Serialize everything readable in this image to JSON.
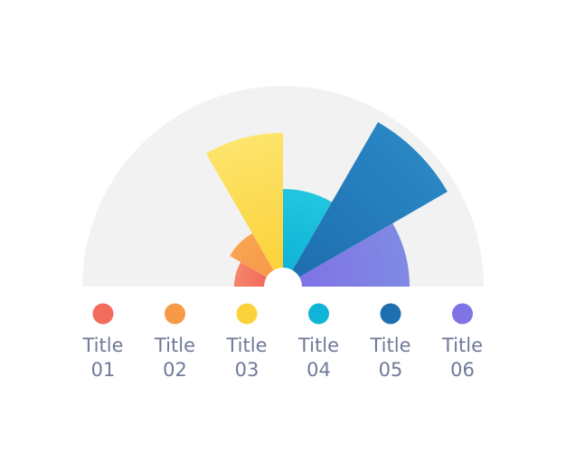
{
  "chart_data": {
    "type": "polar-area-semicircle",
    "title": "",
    "max": 1.0,
    "categories": [
      {
        "name_line1": "Title",
        "name_line2": "01",
        "value": 0.27,
        "color": "#f26b5b",
        "color_light": "#f5866a"
      },
      {
        "name_line1": "Title",
        "name_line2": "02",
        "value": 0.34,
        "color": "#f79a48",
        "color_light": "#f7a452"
      },
      {
        "name_line1": "Title",
        "name_line2": "03",
        "value": 0.85,
        "color": "#fcd23a",
        "color_light": "#fde46c"
      },
      {
        "name_line1": "Title",
        "name_line2": "04",
        "value": 0.54,
        "color": "#10b4d6",
        "color_light": "#22c6e0"
      },
      {
        "name_line1": "Title",
        "name_line2": "05",
        "value": 1.05,
        "color": "#1e6faf",
        "color_light": "#2a86c4"
      },
      {
        "name_line1": "Title",
        "name_line2": "06",
        "value": 0.7,
        "color": "#8073e6",
        "color_light": "#7f8ae3"
      }
    ]
  }
}
